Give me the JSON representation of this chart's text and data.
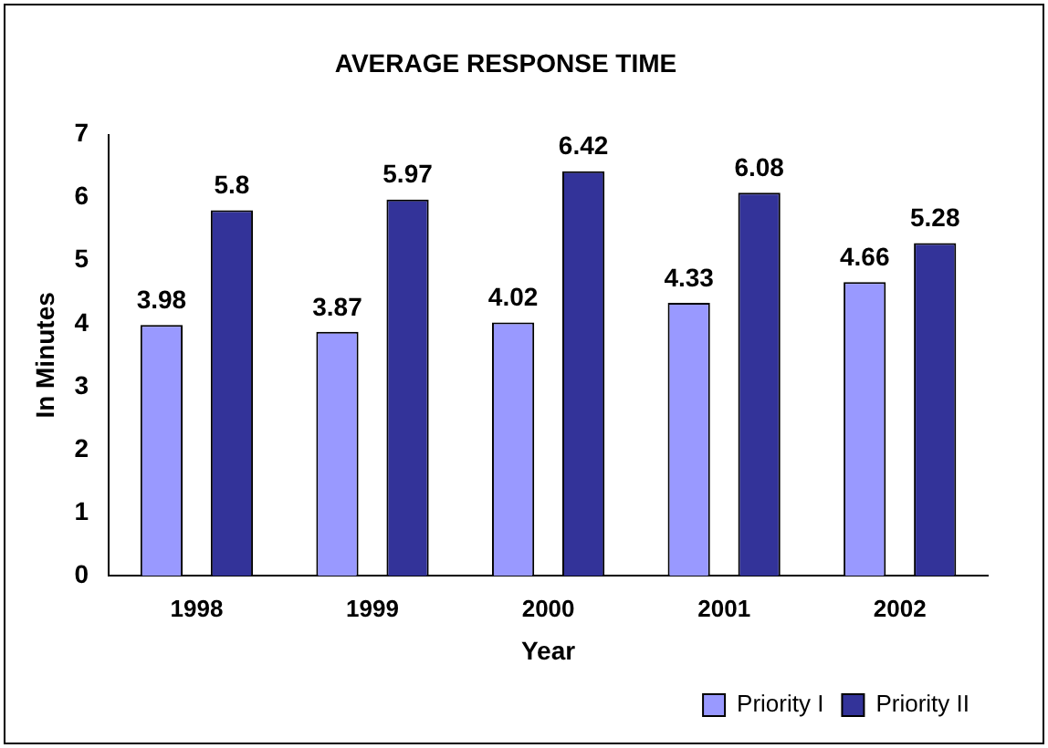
{
  "chart_data": {
    "type": "bar",
    "title": "AVERAGE RESPONSE TIME",
    "xlabel": "Year",
    "ylabel": "In Minutes",
    "categories": [
      "1998",
      "1999",
      "2000",
      "2001",
      "2002"
    ],
    "series": [
      {
        "name": "Priority I",
        "color": "#9999ff",
        "values": [
          3.98,
          3.87,
          4.02,
          4.33,
          4.66
        ]
      },
      {
        "name": "Priority II",
        "color": "#333399",
        "values": [
          5.8,
          5.97,
          6.42,
          6.08,
          5.28
        ]
      }
    ],
    "ylim": [
      0,
      7
    ],
    "yticks": [
      0,
      1,
      2,
      3,
      4,
      5,
      6,
      7
    ],
    "grid": false,
    "legend": "bottom right",
    "data_labels": true
  }
}
